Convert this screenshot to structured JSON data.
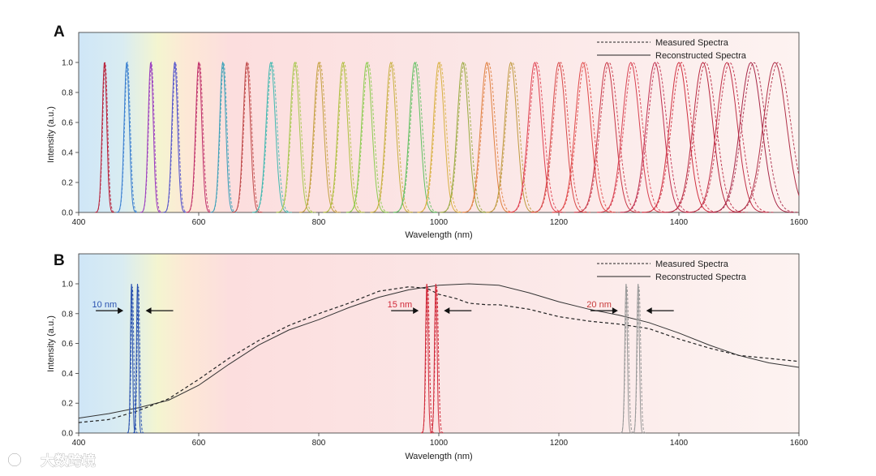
{
  "watermark": {
    "text": "大数跨境"
  },
  "chart_data": [
    {
      "panel": "A",
      "type": "line",
      "title": "",
      "xlabel": "Wavelength (nm)",
      "ylabel": "Intensity (a.u.)",
      "xlim": [
        400,
        1600
      ],
      "ylim": [
        0,
        1.0
      ],
      "xticks": [
        400,
        600,
        800,
        1000,
        1200,
        1400,
        1600
      ],
      "yticks": [
        0.0,
        0.2,
        0.4,
        0.6,
        0.8,
        1.0
      ],
      "legend": {
        "placement": "top-right",
        "entries": [
          {
            "label": "Measured Spectra",
            "style": "dashed"
          },
          {
            "label": "Reconstructed Spectra",
            "style": "solid"
          }
        ]
      },
      "peaks": {
        "centers": [
          443,
          480,
          520,
          560,
          600,
          640,
          680,
          720,
          760,
          800,
          840,
          880,
          920,
          960,
          1000,
          1040,
          1080,
          1120,
          1160,
          1200,
          1240,
          1280,
          1320,
          1360,
          1400,
          1440,
          1480,
          1520,
          1560
        ],
        "widths_fwhm": [
          9,
          10,
          10,
          11,
          12,
          12,
          14,
          18,
          18,
          19,
          19,
          20,
          20,
          21,
          21,
          22,
          24,
          24,
          26,
          27,
          30,
          32,
          33,
          34,
          36,
          38,
          40,
          42,
          45
        ],
        "colors": [
          "#b8203a",
          "#3a7fd0",
          "#9a3dc0",
          "#5555cc",
          "#c0306a",
          "#3aa0b8",
          "#c04a4a",
          "#40b8b0",
          "#a8c850",
          "#c4a040",
          "#b0c040",
          "#8ccc50",
          "#c8b040",
          "#60c060",
          "#d8b040",
          "#9aaa40",
          "#e08040",
          "#c09a40",
          "#e04050",
          "#d84848",
          "#e04848",
          "#c83848",
          "#d84050",
          "#c03050",
          "#d03040",
          "#b82840",
          "#c03048",
          "#a82848",
          "#b03048"
        ],
        "peak_value": 1.0
      }
    },
    {
      "panel": "B",
      "type": "line",
      "title": "",
      "xlabel": "Wavelength (nm)",
      "ylabel": "Intensity (a.u.)",
      "xlim": [
        400,
        1600
      ],
      "ylim": [
        0,
        1.0
      ],
      "xticks": [
        400,
        600,
        800,
        1000,
        1200,
        1400,
        1600
      ],
      "yticks": [
        0.0,
        0.2,
        0.4,
        0.6,
        0.8,
        1.0
      ],
      "legend": {
        "placement": "top-right",
        "entries": [
          {
            "label": "Measured Spectra",
            "style": "dashed"
          },
          {
            "label": "Reconstructed Spectra",
            "style": "solid"
          }
        ]
      },
      "broadband": {
        "measured": [
          [
            400,
            0.07
          ],
          [
            450,
            0.09
          ],
          [
            500,
            0.15
          ],
          [
            550,
            0.23
          ],
          [
            600,
            0.36
          ],
          [
            650,
            0.5
          ],
          [
            700,
            0.62
          ],
          [
            750,
            0.72
          ],
          [
            800,
            0.8
          ],
          [
            850,
            0.87
          ],
          [
            900,
            0.95
          ],
          [
            950,
            0.98
          ],
          [
            980,
            0.97
          ],
          [
            1000,
            0.93
          ],
          [
            1030,
            0.9
          ],
          [
            1050,
            0.87
          ],
          [
            1080,
            0.86
          ],
          [
            1100,
            0.86
          ],
          [
            1150,
            0.83
          ],
          [
            1200,
            0.78
          ],
          [
            1250,
            0.75
          ],
          [
            1300,
            0.73
          ],
          [
            1350,
            0.7
          ],
          [
            1400,
            0.63
          ],
          [
            1450,
            0.57
          ],
          [
            1500,
            0.52
          ],
          [
            1550,
            0.5
          ],
          [
            1600,
            0.48
          ]
        ],
        "reconstructed": [
          [
            400,
            0.1
          ],
          [
            450,
            0.13
          ],
          [
            500,
            0.17
          ],
          [
            550,
            0.22
          ],
          [
            600,
            0.32
          ],
          [
            650,
            0.46
          ],
          [
            700,
            0.59
          ],
          [
            750,
            0.69
          ],
          [
            800,
            0.76
          ],
          [
            850,
            0.84
          ],
          [
            900,
            0.91
          ],
          [
            950,
            0.96
          ],
          [
            1000,
            0.99
          ],
          [
            1050,
            1.0
          ],
          [
            1100,
            0.99
          ],
          [
            1150,
            0.94
          ],
          [
            1200,
            0.88
          ],
          [
            1250,
            0.83
          ],
          [
            1300,
            0.79
          ],
          [
            1350,
            0.74
          ],
          [
            1400,
            0.67
          ],
          [
            1450,
            0.59
          ],
          [
            1500,
            0.52
          ],
          [
            1550,
            0.47
          ],
          [
            1600,
            0.44
          ]
        ]
      },
      "doublets": [
        {
          "label": "10 nm",
          "peaks": [
            488,
            498
          ],
          "width_fwhm": 4,
          "color": "#2a52b0"
        },
        {
          "label": "15 nm",
          "peaks": [
            980,
            995
          ],
          "width_fwhm": 5,
          "color": "#d02a3a"
        },
        {
          "label": "20 nm",
          "peaks": [
            1312,
            1332
          ],
          "width_fwhm": 5,
          "color": "#9a9a9a"
        }
      ]
    }
  ]
}
